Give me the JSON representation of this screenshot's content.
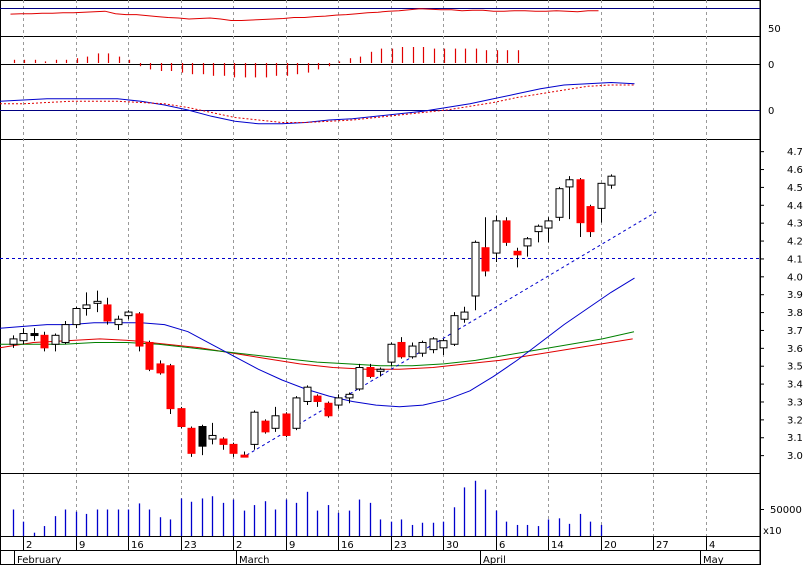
{
  "chart_data": {
    "type": "candlestick",
    "title": "",
    "xlabel": "",
    "ylabel": "",
    "x_tick_labels": [
      "2",
      "9",
      "16",
      "23",
      "2",
      "9",
      "16",
      "23",
      "30",
      "6",
      "14",
      "20",
      "27",
      "4"
    ],
    "month_labels": [
      "February",
      "March",
      "April",
      "May"
    ],
    "rsi_panel": {
      "ticks": [
        "50"
      ],
      "reference_line": 50,
      "values": [
        65,
        66,
        66,
        67,
        67,
        68,
        68,
        69,
        70,
        71,
        66,
        64,
        64,
        62,
        60,
        58,
        57,
        55,
        56,
        57,
        55,
        52,
        52,
        53,
        54,
        55,
        56,
        58,
        58,
        60,
        61,
        63,
        64,
        66,
        68,
        69,
        71,
        72,
        74,
        76,
        75,
        74,
        74,
        72,
        73,
        73,
        71,
        71,
        72,
        72,
        71,
        71,
        72,
        71,
        70,
        72,
        72
      ]
    },
    "histogram_panel": {
      "ticks": [
        "0"
      ],
      "values": [
        2,
        2,
        2,
        1,
        2,
        2,
        3,
        4,
        6,
        6,
        4,
        2,
        -2,
        -4,
        -5,
        -5,
        -6,
        -7,
        -7,
        -8,
        -8,
        -9,
        -9,
        -9,
        -9,
        -8,
        -8,
        -7,
        -6,
        -4,
        -2,
        1,
        3,
        4,
        7,
        9,
        9,
        10,
        10,
        10,
        9,
        9,
        9,
        9,
        9,
        8,
        8,
        8,
        8
      ]
    },
    "macd_panel": {
      "ticks": [
        "0"
      ],
      "macd": [
        0.07,
        0.08,
        0.09,
        0.09,
        0.09,
        0.09,
        0.07,
        0.04,
        0.0,
        -0.05,
        -0.09,
        -0.11,
        -0.11,
        -0.1,
        -0.08,
        -0.07,
        -0.05,
        -0.03,
        -0.01,
        0.02,
        0.05,
        0.09,
        0.13,
        0.17,
        0.2,
        0.21,
        0.22,
        0.21
      ],
      "signal": [
        0.05,
        0.05,
        0.06,
        0.07,
        0.07,
        0.07,
        0.06,
        0.05,
        0.02,
        -0.02,
        -0.06,
        -0.08,
        -0.1,
        -0.1,
        -0.09,
        -0.08,
        -0.06,
        -0.04,
        -0.02,
        0.0,
        0.03,
        0.06,
        0.1,
        0.13,
        0.16,
        0.19,
        0.2,
        0.2
      ]
    },
    "price_panel": {
      "y_ticks": [
        3.0,
        3.1,
        3.2,
        3.3,
        3.4,
        3.5,
        3.6,
        3.7,
        3.8,
        3.9,
        4.0,
        4.1,
        4.2,
        4.3,
        4.4,
        4.5,
        4.6,
        4.7
      ],
      "ylim": [
        2.9,
        4.74
      ],
      "horizontal_reference": 4.1,
      "candles": [
        {
          "o": 3.62,
          "h": 3.67,
          "l": 3.6,
          "c": 3.65,
          "color": "white"
        },
        {
          "o": 3.64,
          "h": 3.71,
          "l": 3.62,
          "c": 3.68,
          "color": "white"
        },
        {
          "o": 3.68,
          "h": 3.71,
          "l": 3.64,
          "c": 3.67,
          "color": "black"
        },
        {
          "o": 3.67,
          "h": 3.69,
          "l": 3.58,
          "c": 3.6,
          "color": "red"
        },
        {
          "o": 3.62,
          "h": 3.68,
          "l": 3.58,
          "c": 3.67,
          "color": "white"
        },
        {
          "o": 3.63,
          "h": 3.75,
          "l": 3.62,
          "c": 3.73,
          "color": "white"
        },
        {
          "o": 3.73,
          "h": 3.83,
          "l": 3.71,
          "c": 3.82,
          "color": "white"
        },
        {
          "o": 3.82,
          "h": 3.91,
          "l": 3.78,
          "c": 3.84,
          "color": "white"
        },
        {
          "o": 3.86,
          "h": 3.92,
          "l": 3.8,
          "c": 3.86,
          "color": "white"
        },
        {
          "o": 3.84,
          "h": 3.88,
          "l": 3.73,
          "c": 3.75,
          "color": "red"
        },
        {
          "o": 3.73,
          "h": 3.78,
          "l": 3.7,
          "c": 3.76,
          "color": "white"
        },
        {
          "o": 3.8,
          "h": 3.81,
          "l": 3.76,
          "c": 3.78,
          "color": "white"
        },
        {
          "o": 3.79,
          "h": 3.8,
          "l": 3.58,
          "c": 3.61,
          "color": "red"
        },
        {
          "o": 3.63,
          "h": 3.64,
          "l": 3.47,
          "c": 3.48,
          "color": "red"
        },
        {
          "o": 3.51,
          "h": 3.53,
          "l": 3.45,
          "c": 3.46,
          "color": "red"
        },
        {
          "o": 3.5,
          "h": 3.51,
          "l": 3.23,
          "c": 3.26,
          "color": "red"
        },
        {
          "o": 3.26,
          "h": 3.27,
          "l": 3.15,
          "c": 3.16,
          "color": "red"
        },
        {
          "o": 3.15,
          "h": 3.16,
          "l": 2.99,
          "c": 3.01,
          "color": "red"
        },
        {
          "o": 3.05,
          "h": 3.17,
          "l": 3.0,
          "c": 3.16,
          "color": "black"
        },
        {
          "o": 3.09,
          "h": 3.18,
          "l": 3.06,
          "c": 3.11,
          "color": "white"
        },
        {
          "o": 3.09,
          "h": 3.1,
          "l": 3.03,
          "c": 3.06,
          "color": "red"
        },
        {
          "o": 3.06,
          "h": 3.07,
          "l": 2.99,
          "c": 3.01,
          "color": "red"
        },
        {
          "o": 3.0,
          "h": 3.02,
          "l": 2.99,
          "c": 3.0,
          "color": "red"
        },
        {
          "o": 3.06,
          "h": 3.25,
          "l": 3.03,
          "c": 3.24,
          "color": "white"
        },
        {
          "o": 3.19,
          "h": 3.2,
          "l": 3.12,
          "c": 3.13,
          "color": "red"
        },
        {
          "o": 3.15,
          "h": 3.27,
          "l": 3.13,
          "c": 3.22,
          "color": "white"
        },
        {
          "o": 3.23,
          "h": 3.24,
          "l": 3.1,
          "c": 3.11,
          "color": "red"
        },
        {
          "o": 3.15,
          "h": 3.33,
          "l": 3.14,
          "c": 3.32,
          "color": "white"
        },
        {
          "o": 3.3,
          "h": 3.39,
          "l": 3.28,
          "c": 3.38,
          "color": "white"
        },
        {
          "o": 3.33,
          "h": 3.34,
          "l": 3.27,
          "c": 3.3,
          "color": "red"
        },
        {
          "o": 3.29,
          "h": 3.3,
          "l": 3.21,
          "c": 3.22,
          "color": "red"
        },
        {
          "o": 3.28,
          "h": 3.34,
          "l": 3.26,
          "c": 3.32,
          "color": "white"
        },
        {
          "o": 3.32,
          "h": 3.35,
          "l": 3.29,
          "c": 3.34,
          "color": "white"
        },
        {
          "o": 3.37,
          "h": 3.51,
          "l": 3.36,
          "c": 3.49,
          "color": "white"
        },
        {
          "o": 3.49,
          "h": 3.51,
          "l": 3.43,
          "c": 3.44,
          "color": "red"
        },
        {
          "o": 3.47,
          "h": 3.49,
          "l": 3.44,
          "c": 3.48,
          "color": "white"
        },
        {
          "o": 3.52,
          "h": 3.63,
          "l": 3.5,
          "c": 3.62,
          "color": "white"
        },
        {
          "o": 3.63,
          "h": 3.66,
          "l": 3.54,
          "c": 3.55,
          "color": "red"
        },
        {
          "o": 3.55,
          "h": 3.63,
          "l": 3.54,
          "c": 3.61,
          "color": "white"
        },
        {
          "o": 3.57,
          "h": 3.64,
          "l": 3.55,
          "c": 3.63,
          "color": "white"
        },
        {
          "o": 3.59,
          "h": 3.66,
          "l": 3.57,
          "c": 3.65,
          "color": "white"
        },
        {
          "o": 3.6,
          "h": 3.65,
          "l": 3.56,
          "c": 3.64,
          "color": "white"
        },
        {
          "o": 3.62,
          "h": 3.8,
          "l": 3.61,
          "c": 3.78,
          "color": "white"
        },
        {
          "o": 3.76,
          "h": 3.83,
          "l": 3.74,
          "c": 3.8,
          "color": "white"
        },
        {
          "o": 3.89,
          "h": 4.2,
          "l": 3.81,
          "c": 4.19,
          "color": "white"
        },
        {
          "o": 4.16,
          "h": 4.33,
          "l": 4.0,
          "c": 4.03,
          "color": "red"
        },
        {
          "o": 4.13,
          "h": 4.34,
          "l": 4.08,
          "c": 4.31,
          "color": "white"
        },
        {
          "o": 4.31,
          "h": 4.33,
          "l": 4.17,
          "c": 4.19,
          "color": "red"
        },
        {
          "o": 4.14,
          "h": 4.16,
          "l": 4.05,
          "c": 4.12,
          "color": "red"
        },
        {
          "o": 4.17,
          "h": 4.22,
          "l": 4.11,
          "c": 4.21,
          "color": "white"
        },
        {
          "o": 4.25,
          "h": 4.29,
          "l": 4.19,
          "c": 4.28,
          "color": "white"
        },
        {
          "o": 4.27,
          "h": 4.33,
          "l": 4.19,
          "c": 4.31,
          "color": "white"
        },
        {
          "o": 4.33,
          "h": 4.5,
          "l": 4.31,
          "c": 4.49,
          "color": "white"
        },
        {
          "o": 4.5,
          "h": 4.56,
          "l": 4.32,
          "c": 4.54,
          "color": "white"
        },
        {
          "o": 4.54,
          "h": 4.55,
          "l": 4.22,
          "c": 4.3,
          "color": "red"
        },
        {
          "o": 4.39,
          "h": 4.4,
          "l": 4.22,
          "c": 4.25,
          "color": "red"
        },
        {
          "o": 4.38,
          "h": 4.52,
          "l": 4.3,
          "c": 4.52,
          "color": "white"
        },
        {
          "o": 4.51,
          "h": 4.57,
          "l": 4.49,
          "c": 4.56,
          "color": "white"
        }
      ],
      "ma_short_blue": [
        3.71,
        3.72,
        3.73,
        3.73,
        3.74,
        3.74,
        3.74,
        3.73,
        3.69,
        3.62,
        3.55,
        3.48,
        3.42,
        3.37,
        3.33,
        3.3,
        3.28,
        3.27,
        3.28,
        3.31,
        3.36,
        3.44,
        3.53,
        3.63,
        3.73,
        3.82,
        3.91,
        3.99
      ],
      "ma_mid_green": [
        3.62,
        3.62,
        3.62,
        3.63,
        3.63,
        3.62,
        3.6,
        3.58,
        3.56,
        3.54,
        3.52,
        3.51,
        3.5,
        3.5,
        3.51,
        3.53,
        3.56,
        3.59,
        3.62,
        3.65,
        3.69
      ],
      "ma_long_red": [
        3.6,
        3.63,
        3.64,
        3.65,
        3.64,
        3.62,
        3.6,
        3.57,
        3.54,
        3.51,
        3.49,
        3.48,
        3.48,
        3.49,
        3.51,
        3.53,
        3.56,
        3.59,
        3.62,
        3.65
      ],
      "trendline": {
        "x0": 22.3,
        "y0": 3.0,
        "x1": 61.3,
        "y1": 4.36
      }
    },
    "volume_panel": {
      "ticks": [
        "50000"
      ],
      "scale_note": "x10",
      "values": [
        48000,
        26000,
        6000,
        18000,
        36000,
        48000,
        44000,
        40000,
        48000,
        48000,
        48000,
        48000,
        59000,
        48000,
        34000,
        30000,
        68000,
        62000,
        68000,
        72000,
        60000,
        66000,
        46000,
        56000,
        63000,
        48000,
        66000,
        60000,
        80000,
        46000,
        56000,
        42000,
        46000,
        66000,
        60000,
        30000,
        26000,
        30000,
        20000,
        24000,
        24000,
        26000,
        52000,
        88000,
        100000,
        84000,
        46000,
        26000,
        20000,
        20000,
        18000,
        30000,
        32000,
        22000,
        40000,
        26000,
        20000
      ]
    }
  }
}
